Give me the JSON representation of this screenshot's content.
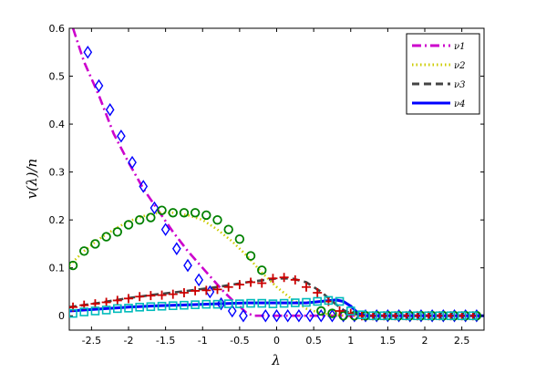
{
  "chart_data": {
    "type": "line",
    "title": "",
    "xlabel": "λ",
    "ylabel": "v(λ)/n",
    "xlim": [
      -2.8,
      2.8
    ],
    "ylim": [
      -0.03,
      0.6
    ],
    "xticks": [
      -2.5,
      -2,
      -1.5,
      -1,
      -0.5,
      0,
      0.5,
      1,
      1.5,
      2,
      2.5
    ],
    "xtick_labels": [
      "-2.5",
      "-2",
      "-1.5",
      "-1",
      "-0.5",
      "0",
      "0.5",
      "1",
      "1.5",
      "2",
      "2.5"
    ],
    "yticks": [
      0,
      0.1,
      0.2,
      0.3,
      0.4,
      0.5,
      0.6
    ],
    "ytick_labels": [
      "0",
      "0.1",
      "0.2",
      "0.3",
      "0.4",
      "0.5",
      "0.6"
    ],
    "grid": false,
    "legend_position": "top-right",
    "series": [
      {
        "name": "ν1",
        "color": "#cc00cc",
        "dash": "dash-dot",
        "marker": "diamond",
        "marker_color": "#0000ff",
        "line_x": [
          -2.75,
          -2.6,
          -2.4,
          -2.2,
          -2.0,
          -1.8,
          -1.6,
          -1.4,
          -1.2,
          -1.0,
          -0.8,
          -0.7,
          -0.6,
          -0.5,
          -0.45,
          -0.4,
          -0.3,
          0,
          0.5,
          1,
          1.5,
          2,
          2.5,
          2.8
        ],
        "line_y": [
          0.6,
          0.53,
          0.46,
          0.38,
          0.32,
          0.265,
          0.22,
          0.175,
          0.135,
          0.1,
          0.065,
          0.048,
          0.033,
          0.02,
          0.012,
          0.005,
          0.0,
          0.0,
          0.0,
          0.0,
          0.0,
          0.0,
          0.0,
          0.0
        ],
        "marker_x": [
          -2.55,
          -2.4,
          -2.25,
          -2.1,
          -1.95,
          -1.8,
          -1.65,
          -1.5,
          -1.35,
          -1.2,
          -1.05,
          -0.9,
          -0.75,
          -0.6,
          -0.45,
          -0.15,
          0,
          0.15,
          0.3,
          0.45,
          0.6,
          0.75,
          0.9,
          1.05,
          1.2,
          1.35,
          1.5,
          1.65,
          1.8,
          1.95,
          2.1,
          2.25,
          2.4,
          2.55,
          2.7
        ],
        "marker_y": [
          0.55,
          0.48,
          0.43,
          0.375,
          0.32,
          0.27,
          0.225,
          0.18,
          0.14,
          0.105,
          0.075,
          0.05,
          0.025,
          0.01,
          0.0,
          0.0,
          0.0,
          0.0,
          0.0,
          0.0,
          0.0,
          0.0,
          0.0,
          0.0,
          0.0,
          0.0,
          0.0,
          0.0,
          0.0,
          0.0,
          0.0,
          0.0,
          0.0,
          0.0,
          0.0
        ]
      },
      {
        "name": "ν2",
        "color": "#cccc00",
        "dash": "dotted",
        "marker": "circle",
        "marker_color": "#008000",
        "line_x": [
          -2.8,
          -2.6,
          -2.4,
          -2.2,
          -2.0,
          -1.8,
          -1.6,
          -1.4,
          -1.2,
          -1.0,
          -0.8,
          -0.6,
          -0.4,
          -0.2,
          0.0,
          0.2,
          0.4,
          0.6,
          0.8,
          1.0,
          1.2,
          1.5,
          2,
          2.5,
          2.8
        ],
        "line_y": [
          0.105,
          0.135,
          0.16,
          0.18,
          0.197,
          0.208,
          0.215,
          0.215,
          0.21,
          0.2,
          0.18,
          0.155,
          0.125,
          0.09,
          0.06,
          0.035,
          0.015,
          0.005,
          0.001,
          0.0,
          0.0,
          0.0,
          0.0,
          0.0,
          0.0
        ],
        "marker_x": [
          -2.75,
          -2.6,
          -2.45,
          -2.3,
          -2.15,
          -2.0,
          -1.85,
          -1.7,
          -1.55,
          -1.4,
          -1.25,
          -1.1,
          -0.95,
          -0.8,
          -0.65,
          -0.5,
          -0.35,
          -0.2,
          0.6,
          0.75,
          0.9,
          1.05,
          1.2,
          1.35,
          1.5,
          1.65,
          1.8,
          1.95,
          2.1,
          2.25,
          2.4,
          2.55,
          2.7
        ],
        "marker_y": [
          0.105,
          0.135,
          0.15,
          0.165,
          0.175,
          0.19,
          0.2,
          0.205,
          0.22,
          0.215,
          0.215,
          0.215,
          0.21,
          0.2,
          0.18,
          0.16,
          0.125,
          0.095,
          0.01,
          0.005,
          0.0,
          0.0,
          0.0,
          0.0,
          0.0,
          0.0,
          0.0,
          0.0,
          0.0,
          0.0,
          0.0,
          0.0,
          0.0
        ]
      },
      {
        "name": "ν3",
        "color": "#444444",
        "dash": "dashed",
        "marker": "plus",
        "marker_color": "#cc0000",
        "line_x": [
          -2.8,
          -2.4,
          -2.0,
          -1.6,
          -1.2,
          -0.8,
          -0.4,
          0.0,
          0.2,
          0.4,
          0.6,
          0.75,
          0.9,
          1.0,
          1.2,
          1.5,
          2,
          2.5,
          2.8
        ],
        "line_y": [
          0.018,
          0.027,
          0.037,
          0.045,
          0.052,
          0.06,
          0.07,
          0.078,
          0.078,
          0.07,
          0.05,
          0.03,
          0.012,
          0.005,
          0.0,
          0.0,
          0.0,
          0.0,
          0.0
        ],
        "marker_x": [
          -2.75,
          -2.6,
          -2.45,
          -2.3,
          -2.15,
          -2.0,
          -1.85,
          -1.7,
          -1.55,
          -1.4,
          -1.25,
          -1.1,
          -0.95,
          -0.8,
          -0.65,
          -0.5,
          -0.35,
          -0.2,
          -0.05,
          0.1,
          0.25,
          0.4,
          0.55,
          0.7,
          0.85,
          1.0,
          1.15,
          1.3,
          1.45,
          1.6,
          1.75,
          1.9,
          2.05,
          2.2,
          2.35,
          2.5,
          2.65
        ],
        "marker_y": [
          0.018,
          0.022,
          0.025,
          0.028,
          0.032,
          0.036,
          0.04,
          0.042,
          0.043,
          0.045,
          0.048,
          0.052,
          0.053,
          0.055,
          0.06,
          0.065,
          0.07,
          0.068,
          0.078,
          0.08,
          0.075,
          0.06,
          0.048,
          0.03,
          0.01,
          0.005,
          0.0,
          0.0,
          0.0,
          0.0,
          0.0,
          0.0,
          0.0,
          0.0,
          0.0,
          0.0,
          0.0
        ]
      },
      {
        "name": "ν4",
        "color": "#0000ff",
        "dash": "solid",
        "marker": "square",
        "marker_color": "#00bbbb",
        "line_x": [
          -2.8,
          -2.4,
          -2.0,
          -1.6,
          -1.2,
          -0.8,
          -0.4,
          0.0,
          0.4,
          0.6,
          0.8,
          0.9,
          1.0,
          1.1,
          1.2,
          1.5,
          2,
          2.5,
          2.8
        ],
        "line_y": [
          0.01,
          0.014,
          0.018,
          0.021,
          0.023,
          0.025,
          0.027,
          0.027,
          0.027,
          0.03,
          0.033,
          0.03,
          0.02,
          0.005,
          0.0,
          0.0,
          0.0,
          0.0,
          0.0
        ],
        "marker_x": [
          -2.75,
          -2.6,
          -2.45,
          -2.3,
          -2.15,
          -2.0,
          -1.85,
          -1.7,
          -1.55,
          -1.4,
          -1.25,
          -1.1,
          -0.95,
          -0.8,
          -0.65,
          -0.5,
          -0.35,
          -0.2,
          -0.05,
          0.1,
          0.25,
          0.4,
          0.55,
          0.7,
          0.85,
          1.0,
          1.15,
          1.3,
          1.45,
          1.6,
          1.75,
          1.9,
          2.05,
          2.2,
          2.35,
          2.5,
          2.65
        ],
        "marker_y": [
          0.005,
          0.008,
          0.01,
          0.012,
          0.015,
          0.016,
          0.018,
          0.019,
          0.02,
          0.021,
          0.022,
          0.023,
          0.024,
          0.024,
          0.025,
          0.025,
          0.026,
          0.026,
          0.025,
          0.026,
          0.027,
          0.028,
          0.03,
          0.032,
          0.03,
          0.01,
          0.002,
          0.0,
          0.0,
          0.0,
          0.0,
          0.0,
          0.0,
          0.0,
          0.0,
          0.0,
          0.0
        ]
      }
    ]
  }
}
